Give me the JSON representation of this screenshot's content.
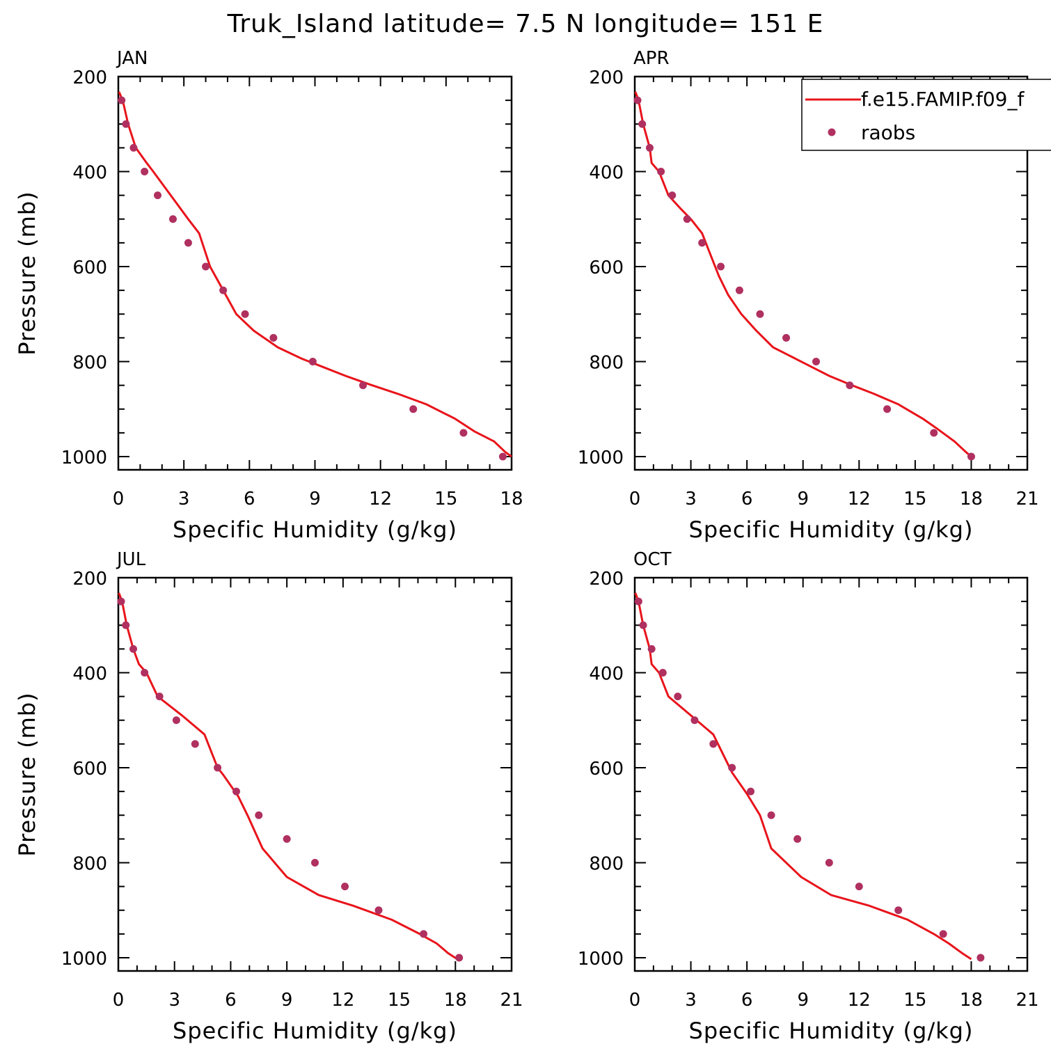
{
  "figure_title": "Truk_Island  latitude= 7.5 N longitude= 151 E",
  "colors": {
    "model": "#e8141b",
    "obs": "#b03060",
    "axis": "#000000"
  },
  "legend": {
    "model_label": "f.e15.FAMIP.f09_f",
    "obs_label": "raobs",
    "placement": "top-right of APR panel"
  },
  "chart_data": [
    {
      "type": "line+scatter",
      "title": "JAN",
      "xlabel": "Specific Humidity (g/kg)",
      "ylabel": "Pressure (mb)",
      "xlim": [
        0,
        18
      ],
      "xticks": [
        0,
        3,
        6,
        9,
        12,
        15,
        18
      ],
      "ylim": [
        200,
        1000
      ],
      "y_inverted": true,
      "yticks": [
        200,
        400,
        600,
        800,
        1000
      ],
      "series": [
        {
          "name": "f.e15.FAMIP.f09_f",
          "kind": "line",
          "x": [
            0.03,
            0.2,
            0.45,
            0.8,
            1.3,
            1.6,
            2.4,
            3.2,
            3.7,
            4.2,
            4.8,
            5.4,
            6.2,
            7.3,
            8.4,
            9.4,
            10.4,
            11.5,
            12.8,
            14.1,
            15.4,
            16.3,
            17.2,
            17.7,
            18.0
          ],
          "y": [
            232,
            250,
            300,
            350,
            382,
            400,
            450,
            500,
            530,
            600,
            650,
            700,
            735,
            770,
            794,
            812,
            830,
            848,
            868,
            890,
            920,
            947,
            968,
            990,
            1000
          ]
        },
        {
          "name": "raobs",
          "kind": "scatter",
          "x": [
            0.15,
            0.35,
            0.7,
            1.2,
            1.8,
            2.5,
            3.2,
            4.0,
            4.8,
            5.8,
            7.1,
            8.9,
            11.2,
            13.5,
            15.8,
            17.6
          ],
          "y": [
            250,
            300,
            350,
            400,
            450,
            500,
            550,
            600,
            650,
            700,
            750,
            800,
            850,
            900,
            950,
            1000
          ]
        }
      ]
    },
    {
      "type": "line+scatter",
      "title": "APR",
      "xlabel": "Specific Humidity (g/kg)",
      "ylabel": "",
      "xlim": [
        0,
        21
      ],
      "xticks": [
        0,
        3,
        6,
        9,
        12,
        15,
        18,
        21
      ],
      "ylim": [
        200,
        1000
      ],
      "y_inverted": true,
      "yticks": [
        200,
        400,
        600,
        800,
        1000
      ],
      "series": [
        {
          "name": "f.e15.FAMIP.f09_f",
          "kind": "line",
          "x": [
            0.03,
            0.2,
            0.45,
            0.8,
            0.9,
            1.3,
            1.8,
            2.5,
            3.0,
            3.6,
            4.0,
            4.5,
            5.0,
            5.7,
            6.5,
            7.4,
            8.5,
            9.5,
            10.4,
            11.5,
            12.8,
            14.1,
            15.4,
            16.2,
            17.1,
            17.7,
            18.0
          ],
          "y": [
            232,
            250,
            300,
            350,
            382,
            400,
            450,
            480,
            500,
            530,
            570,
            620,
            660,
            700,
            735,
            770,
            792,
            812,
            830,
            848,
            868,
            890,
            920,
            942,
            968,
            990,
            1000
          ]
        },
        {
          "name": "raobs",
          "kind": "scatter",
          "x": [
            0.15,
            0.4,
            0.8,
            1.4,
            2.0,
            2.8,
            3.6,
            4.6,
            5.6,
            6.7,
            8.1,
            9.7,
            11.5,
            13.5,
            16.0,
            18.0
          ],
          "y": [
            250,
            300,
            350,
            400,
            450,
            500,
            550,
            600,
            650,
            700,
            750,
            800,
            850,
            900,
            950,
            1000
          ]
        }
      ]
    },
    {
      "type": "line+scatter",
      "title": "JUL",
      "xlabel": "Specific Humidity (g/kg)",
      "ylabel": "Pressure (mb)",
      "xlim": [
        0,
        21
      ],
      "xticks": [
        0,
        3,
        6,
        9,
        12,
        15,
        18,
        21
      ],
      "ylim": [
        200,
        1000
      ],
      "y_inverted": true,
      "yticks": [
        200,
        400,
        600,
        800,
        1000
      ],
      "series": [
        {
          "name": "f.e15.FAMIP.f09_f",
          "kind": "line",
          "x": [
            0.03,
            0.2,
            0.45,
            0.8,
            1.1,
            1.5,
            2.1,
            3.4,
            4.6,
            5.3,
            5.6,
            6.4,
            6.9,
            7.7,
            9.0,
            10.7,
            12.5,
            14.6,
            16.1,
            17.0,
            17.6,
            18.1
          ],
          "y": [
            232,
            250,
            300,
            350,
            382,
            400,
            450,
            490,
            530,
            600,
            615,
            660,
            700,
            770,
            830,
            868,
            890,
            920,
            950,
            970,
            990,
            1003
          ]
        },
        {
          "name": "raobs",
          "kind": "scatter",
          "x": [
            0.15,
            0.4,
            0.8,
            1.4,
            2.2,
            3.1,
            4.1,
            5.3,
            6.3,
            7.5,
            9.0,
            10.5,
            12.1,
            13.9,
            16.3,
            18.2
          ],
          "y": [
            250,
            300,
            350,
            400,
            450,
            500,
            550,
            600,
            650,
            700,
            750,
            800,
            850,
            900,
            950,
            1000
          ]
        }
      ]
    },
    {
      "type": "line+scatter",
      "title": "OCT",
      "xlabel": "Specific Humidity (g/kg)",
      "ylabel": "",
      "xlim": [
        0,
        21
      ],
      "xticks": [
        0,
        3,
        6,
        9,
        12,
        15,
        18,
        21
      ],
      "ylim": [
        200,
        1000
      ],
      "y_inverted": true,
      "yticks": [
        200,
        400,
        600,
        800,
        1000
      ],
      "series": [
        {
          "name": "f.e15.FAMIP.f09_f",
          "kind": "line",
          "x": [
            0.03,
            0.2,
            0.45,
            0.8,
            0.9,
            1.3,
            1.8,
            3.0,
            4.2,
            5.2,
            6.0,
            6.7,
            7.3,
            8.9,
            10.5,
            12.5,
            14.6,
            16.0,
            16.8,
            17.5,
            18.0
          ],
          "y": [
            232,
            250,
            300,
            350,
            382,
            400,
            450,
            490,
            530,
            610,
            655,
            700,
            770,
            830,
            868,
            890,
            920,
            950,
            970,
            990,
            1003
          ]
        },
        {
          "name": "raobs",
          "kind": "scatter",
          "x": [
            0.2,
            0.45,
            0.9,
            1.5,
            2.3,
            3.2,
            4.2,
            5.2,
            6.2,
            7.3,
            8.7,
            10.4,
            12.0,
            14.1,
            16.5,
            18.5
          ],
          "y": [
            250,
            300,
            350,
            400,
            450,
            500,
            550,
            600,
            650,
            700,
            750,
            800,
            850,
            900,
            950,
            1000
          ]
        }
      ]
    }
  ]
}
